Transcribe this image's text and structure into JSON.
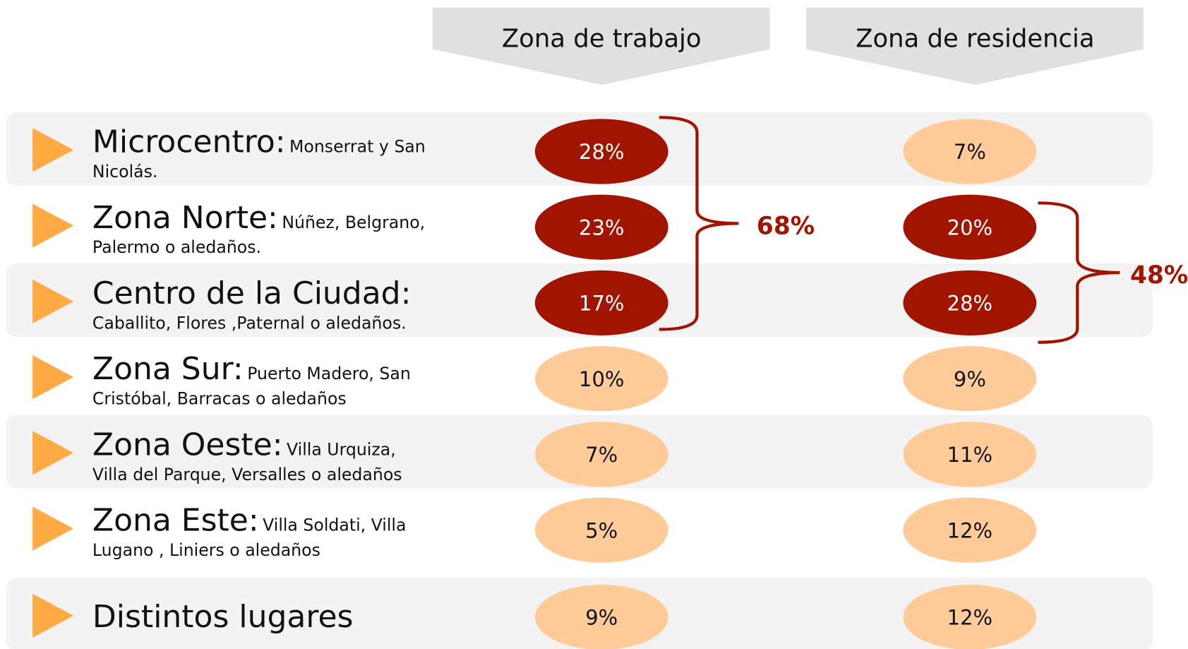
{
  "columns": [
    "Zona de trabajo",
    "Zona de residencia"
  ],
  "rows": [
    {
      "zone": "Microcentro:",
      "detail": [
        "Monserrat y San",
        "Nicolás."
      ],
      "cells": [
        {
          "text": "28%",
          "color": "#a01400"
        },
        {
          "text": "7%",
          "color": "#ffcc99"
        }
      ]
    },
    {
      "zone": "Zona Norte:",
      "detail": [
        "Núñez, Belgrano,",
        "Palermo o aledaños."
      ],
      "cells": [
        {
          "text": "23%",
          "color": "#a01400"
        },
        {
          "text": "20%",
          "color": "#a01400"
        }
      ]
    },
    {
      "zone": "Centro de la Ciudad:",
      "detail": [
        "Caballito, Flores ,Paternal o aledaños."
      ],
      "cells": [
        {
          "text": "17%",
          "color": "#a01400"
        },
        {
          "text": "28%",
          "color": "#a01400"
        }
      ]
    },
    {
      "zone": "Zona Sur:",
      "detail": [
        "Puerto Madero, San",
        "Cristóbal,  Barracas o aledaños"
      ],
      "cells": [
        {
          "text": "10%",
          "color": "#ffcc99"
        },
        {
          "text": "9%",
          "color": "#ffcc99"
        }
      ]
    },
    {
      "zone": "Zona Oeste:",
      "detail": [
        "Villa Urquiza,",
        "Villa del Parque, Versalles o aledaños"
      ],
      "cells": [
        {
          "text": "7%",
          "color": "#ffcc99"
        },
        {
          "text": "11%",
          "color": "#ffcc99"
        }
      ]
    },
    {
      "zone": "Zona Este:",
      "detail": [
        "Villa Soldati, Villa",
        "Lugano , Liniers o aledaños"
      ],
      "cells": [
        {
          "text": "5%",
          "color": "#ffcc99"
        },
        {
          "text": "12%",
          "color": "#ffcc99"
        }
      ]
    },
    {
      "zone": "Distintos lugares",
      "detail": [],
      "cells": [
        {
          "text": "9%",
          "color": "#ffcc99"
        },
        {
          "text": "12%",
          "color": "#ffcc99"
        }
      ]
    }
  ],
  "brackets": [
    "68%",
    "48%"
  ]
}
